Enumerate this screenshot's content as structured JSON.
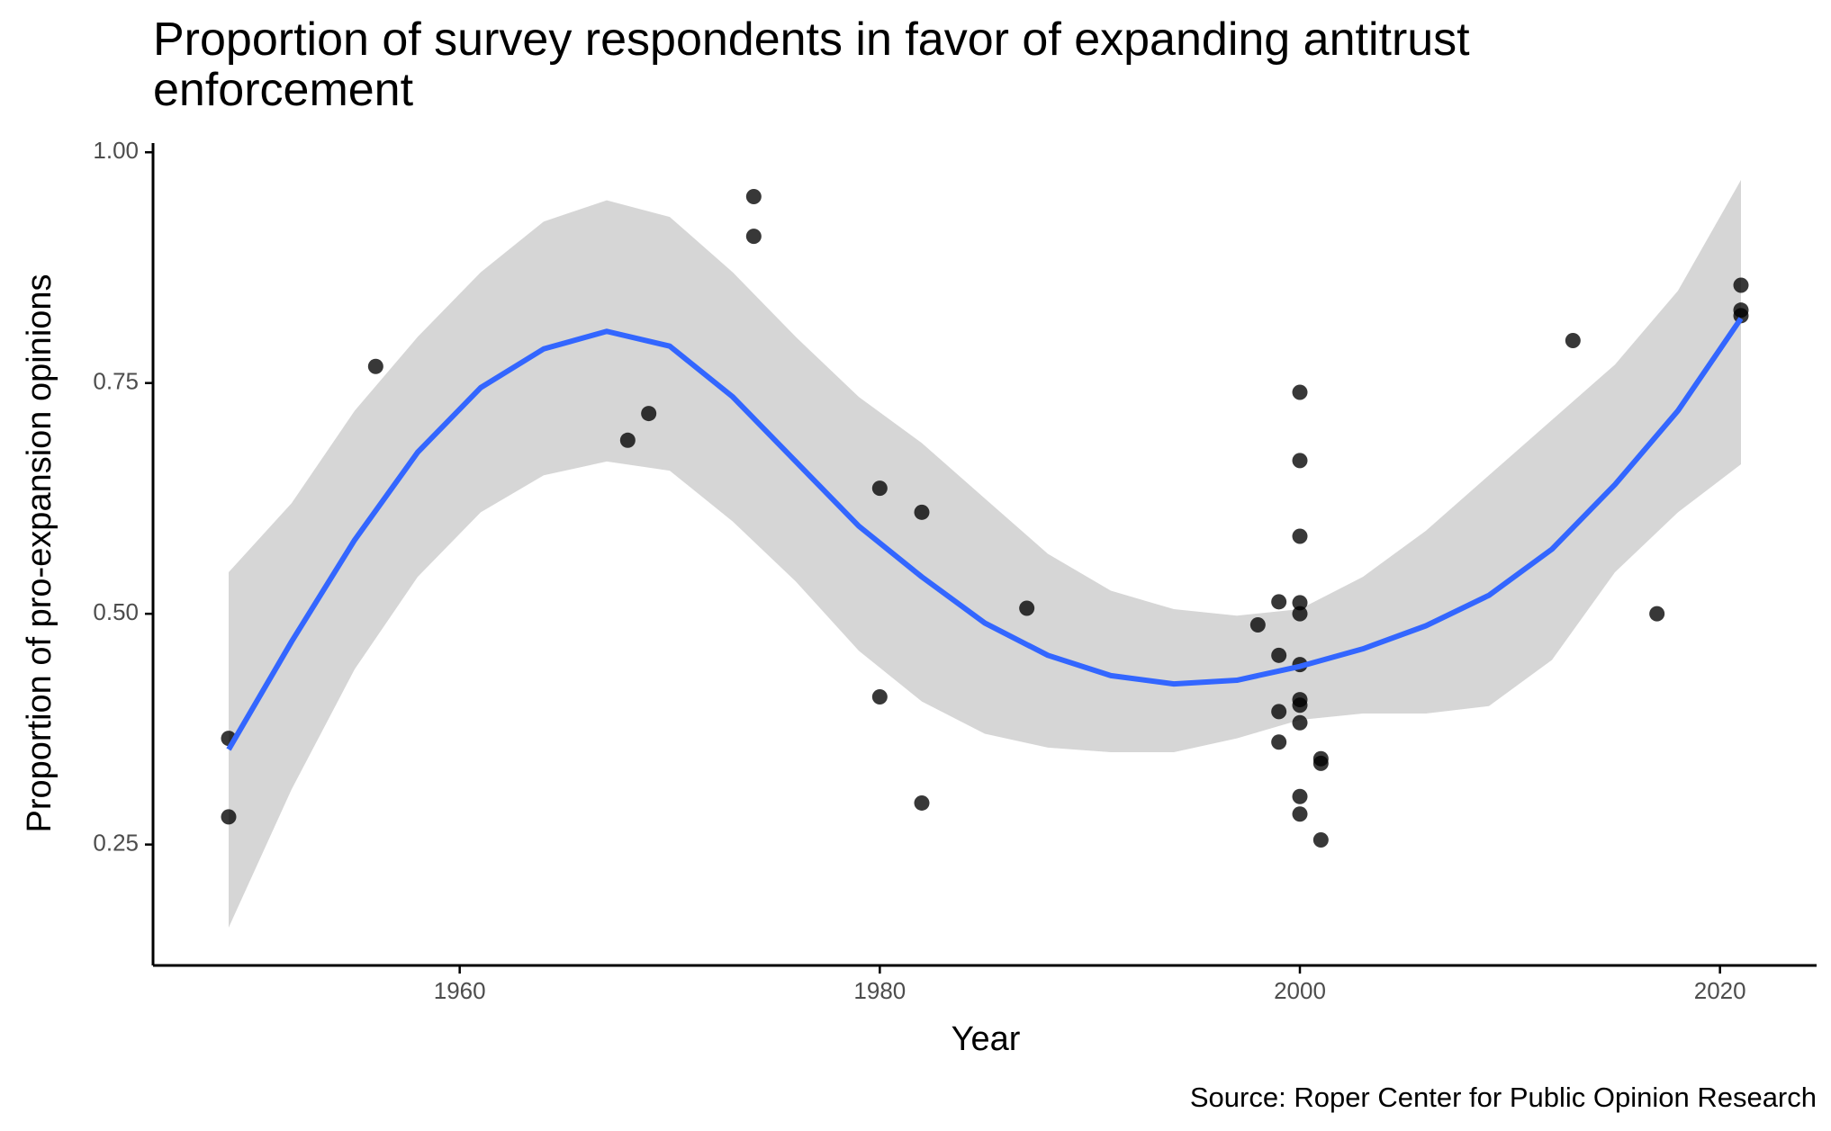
{
  "chart_data": {
    "type": "scatter",
    "title": "Proportion of survey respondents in favor of expanding antitrust enforcement",
    "x_label": "Year",
    "y_label": "Proportion of pro-expansion opinions",
    "caption": "Source: Roper Center for Public Opinion Research",
    "xlim": [
      1945.4,
      2024.6
    ],
    "ylim": [
      0.119,
      1.01
    ],
    "xticks": [
      1960,
      1980,
      2000,
      2020
    ],
    "yticks": [
      {
        "value": 0.25,
        "label": "0.25"
      },
      {
        "value": 0.5,
        "label": "0.50"
      },
      {
        "value": 0.75,
        "label": "0.75"
      },
      {
        "value": 1,
        "label": "1.00"
      }
    ],
    "grid": false,
    "series": [
      {
        "color": "#000000",
        "x": [
          1949,
          1949,
          1956,
          1968,
          1969,
          1974,
          1974,
          1980,
          1980,
          1982,
          1982,
          1987,
          1998,
          1999,
          1999,
          1999,
          1999,
          2000,
          2000,
          2000,
          2000,
          2000,
          2000,
          2000,
          2000,
          2000,
          2000,
          2000,
          2001,
          2001,
          2001,
          2013,
          2017,
          2021,
          2021,
          2021
        ],
        "values": [
          0.365,
          0.28,
          0.768,
          0.688,
          0.717,
          0.952,
          0.909,
          0.636,
          0.41,
          0.61,
          0.295,
          0.506,
          0.488,
          0.513,
          0.455,
          0.394,
          0.361,
          0.74,
          0.666,
          0.584,
          0.512,
          0.5,
          0.445,
          0.407,
          0.401,
          0.382,
          0.302,
          0.283,
          0.343,
          0.338,
          0.255,
          0.796,
          0.5,
          0.856,
          0.829,
          0.823
        ]
      }
    ],
    "smooth": {
      "color": "#3366ff",
      "band_color": "#d6d6d6",
      "x": [
        1949,
        1952,
        1955,
        1958,
        1961,
        1964,
        1967,
        1970,
        1973,
        1976,
        1979,
        1982,
        1985,
        1988,
        1991,
        1994,
        1997,
        2000,
        2003,
        2006,
        2009,
        2012,
        2015,
        2018,
        2021
      ],
      "values": [
        0.353,
        0.47,
        0.58,
        0.675,
        0.745,
        0.787,
        0.806,
        0.79,
        0.735,
        0.665,
        0.595,
        0.54,
        0.49,
        0.455,
        0.433,
        0.424,
        0.428,
        0.443,
        0.462,
        0.487,
        0.52,
        0.57,
        0.64,
        0.72,
        0.82
      ],
      "upper": [
        0.545,
        0.62,
        0.72,
        0.8,
        0.87,
        0.925,
        0.948,
        0.93,
        0.87,
        0.8,
        0.735,
        0.685,
        0.625,
        0.565,
        0.525,
        0.505,
        0.498,
        0.505,
        0.54,
        0.59,
        0.65,
        0.71,
        0.77,
        0.85,
        0.97
      ],
      "lower": [
        0.16,
        0.31,
        0.44,
        0.54,
        0.61,
        0.65,
        0.665,
        0.655,
        0.6,
        0.535,
        0.46,
        0.405,
        0.37,
        0.355,
        0.35,
        0.35,
        0.365,
        0.385,
        0.392,
        0.392,
        0.4,
        0.45,
        0.545,
        0.61,
        0.662
      ]
    }
  }
}
